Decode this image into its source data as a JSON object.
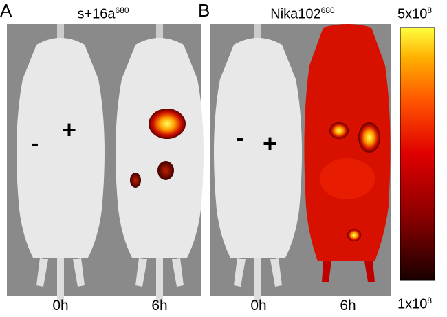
{
  "panels": [
    {
      "label": "A",
      "title": "s+16a",
      "title_sup": "680",
      "times": [
        "0h",
        "6h"
      ],
      "markers": [
        "-",
        "+"
      ]
    },
    {
      "label": "B",
      "title": "Nika102",
      "title_sup": "680",
      "times": [
        "0h",
        "6h"
      ],
      "markers": [
        "-",
        "+"
      ]
    }
  ],
  "colorbar": {
    "max_label": "5x10",
    "max_sup": "8",
    "min_label": "1x10",
    "min_sup": "8",
    "colors": [
      "#1a0000",
      "#8b0000",
      "#e00000",
      "#ff5000",
      "#ffb000",
      "#ffff40"
    ]
  }
}
